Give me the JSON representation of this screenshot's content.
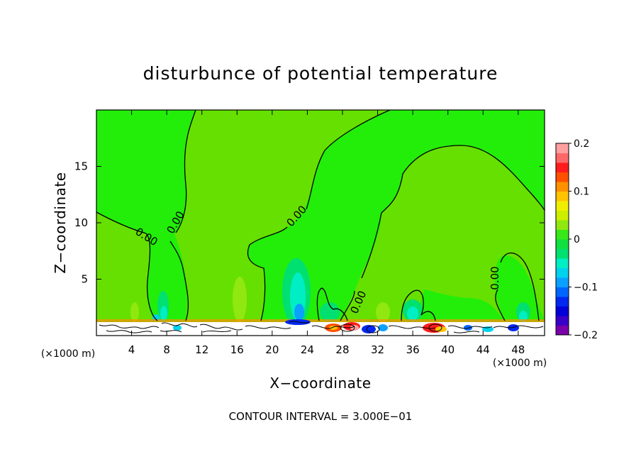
{
  "chart_data": {
    "type": "heatmap",
    "title": "disturbunce of potential temperature",
    "xlabel": "X−coordinate",
    "ylabel": "Z−coordinate",
    "x_unit_left": "(×1000 m)",
    "x_unit_right": "(×1000 m)",
    "xlim": [
      0,
      51
    ],
    "ylim": [
      0,
      20
    ],
    "x_ticks": [
      4,
      8,
      12,
      16,
      20,
      24,
      28,
      32,
      36,
      40,
      44,
      48
    ],
    "x_tick_labels": [
      "4",
      "8",
      "12",
      "16",
      "20",
      "24",
      "28",
      "32",
      "36",
      "40",
      "44",
      "48"
    ],
    "y_ticks": [
      5,
      10,
      15
    ],
    "y_tick_labels": [
      "5",
      "10",
      "15"
    ],
    "colorbar": {
      "range": [
        -0.2,
        0.2
      ],
      "tick_labels": [
        "0.2",
        "0.1",
        "0",
        "−0.1",
        "−0.2"
      ],
      "tick_values": [
        0.2,
        0.1,
        0,
        -0.1,
        -0.2
      ],
      "colors": [
        "#7a00a8",
        "#3a00c8",
        "#0000d8",
        "#0028f0",
        "#0066ff",
        "#0aa0ff",
        "#00d2ee",
        "#00eec4",
        "#00e070",
        "#10e040",
        "#38e818",
        "#90e810",
        "#ccee00",
        "#f0ee00",
        "#ffc400",
        "#ff9000",
        "#ff5000",
        "#ff1c1c",
        "#ff6868",
        "#ffa0a0"
      ]
    },
    "contours": [
      {
        "level": 0.0,
        "label": "0.00"
      },
      {
        "level": 0.0,
        "label": "0.00"
      },
      {
        "level": 0.0,
        "label": "0.00"
      },
      {
        "level": 0.0,
        "label": "0.00"
      },
      {
        "level": 0.0,
        "label": "0.00"
      },
      {
        "level": 0.0,
        "label": "0.00"
      }
    ],
    "contour_interval_text": "CONTOUR INTERVAL = 3.000E−01"
  }
}
